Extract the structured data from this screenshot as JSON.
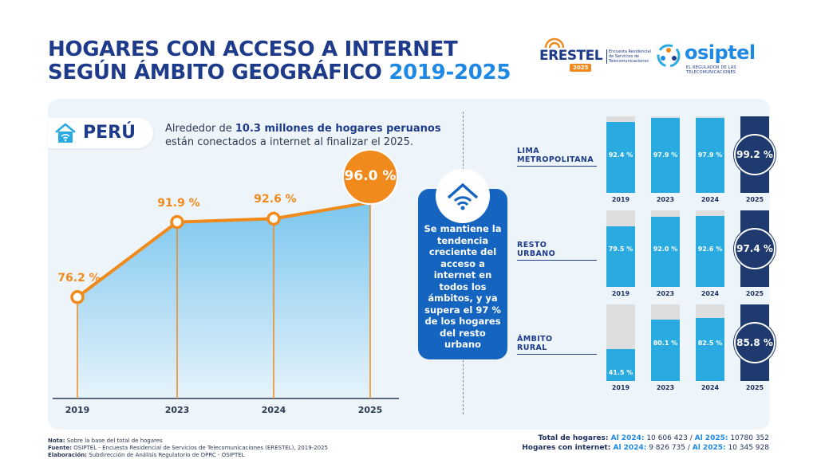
{
  "header": {
    "title_line1": "HOGARES CON ACCESO A INTERNET",
    "title_line2": "SEGÚN ÁMBITO GEOGRÁFICO",
    "title_years": "2019-2025"
  },
  "logos": {
    "erestel_word": "ERESTEL",
    "erestel_sub": "Encuesta Residencial de Servicios de Telecomunicaciones",
    "erestel_year": "2025",
    "osiptel_word": "osiptel",
    "osiptel_sub": "EL REGULADOR DE LAS TELECOMUNICACIONES"
  },
  "peru": {
    "label": "PERÚ",
    "intro_prefix": "Alrededor de ",
    "intro_bold": "10.3 millones de hogares peruanos",
    "intro_suffix": " están conectados a internet al finalizar el 2025."
  },
  "center": {
    "text": "Se mantiene la tendencia creciente del acceso a internet en todos los ámbitos, y ya supera el 97 % de los hogares del resto urbano"
  },
  "chart_data": [
    {
      "type": "area",
      "title": "PERÚ",
      "categories": [
        "2019",
        "2023",
        "2024",
        "2025"
      ],
      "values": [
        76.2,
        91.9,
        92.6,
        96.0
      ],
      "labels": [
        "76.2 %",
        "91.9 %",
        "92.6 %",
        "96.0 %"
      ],
      "ylim": [
        55,
        105
      ]
    },
    {
      "type": "bar",
      "title": "LIMA METROPOLITANA",
      "categories": [
        "2019",
        "2023",
        "2024",
        "2025"
      ],
      "values": [
        92.4,
        97.9,
        97.9,
        99.2
      ],
      "labels": [
        "92.4 %",
        "97.9 %",
        "97.9 %",
        "99.2 %"
      ],
      "ylim": [
        0,
        100
      ]
    },
    {
      "type": "bar",
      "title": "RESTO URBANO",
      "categories": [
        "2019",
        "2023",
        "2024",
        "2025"
      ],
      "values": [
        79.5,
        92.0,
        92.6,
        97.4
      ],
      "labels": [
        "79.5 %",
        "92.0 %",
        "92.6 %",
        "97.4 %"
      ],
      "ylim": [
        0,
        100
      ]
    },
    {
      "type": "bar",
      "title": "ÁMBITO RURAL",
      "categories": [
        "2019",
        "2023",
        "2024",
        "2025"
      ],
      "values": [
        41.5,
        80.1,
        82.5,
        85.8
      ],
      "labels": [
        "41.5 %",
        "80.1 %",
        "82.5 %",
        "85.8 %"
      ],
      "ylim": [
        0,
        100
      ]
    }
  ],
  "regions": [
    {
      "line1": "LIMA",
      "line2": "METROPOLITANA"
    },
    {
      "line1": "RESTO",
      "line2": "URBANO"
    },
    {
      "line1": "ÁMBITO",
      "line2": "RURAL"
    }
  ],
  "totals": {
    "l1_label": "Total de hogares: ",
    "l1_a_year": "Al 2024:",
    "l1_a_val": " 10 606 423 / ",
    "l1_b_year": "Al 2025:",
    "l1_b_val": " 10780 352",
    "l2_label": "Hogares con internet: ",
    "l2_a_year": "Al 2024:",
    "l2_a_val": " 9 826 735 / ",
    "l2_b_year": "Al 2025:",
    "l2_b_val": " 10 345 928"
  },
  "notes": {
    "n1_key": "Nota:",
    "n1_val": " Sobre la base del total de hogares",
    "n2_key": "Fuente:",
    "n2_val": " OSIPTEL - Encuesta Residencial de Servicios de Telecomunicaciones (ERESTEL), 2019-2025",
    "n3_key": "Elaboración:",
    "n3_val": " Subdirección de Análisis Regulatorio de DPRC - OSIPTEL"
  },
  "colors": {
    "navy": "#1e3a8a",
    "orange": "#f08a1c",
    "cyan": "#29abe2",
    "dark_bar": "#1e3a6e",
    "blue": "#1565c0"
  }
}
